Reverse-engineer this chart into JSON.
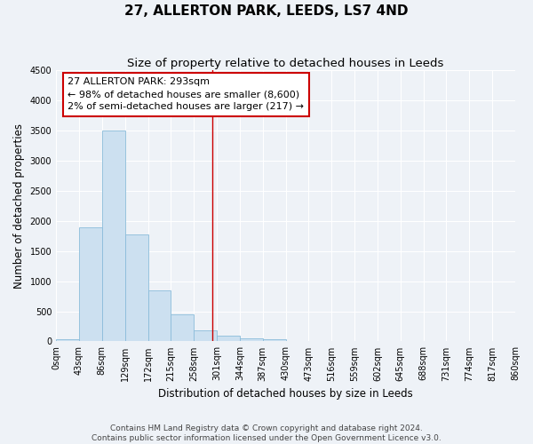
{
  "title": "27, ALLERTON PARK, LEEDS, LS7 4ND",
  "subtitle": "Size of property relative to detached houses in Leeds",
  "bar_values": [
    40,
    1900,
    3500,
    1780,
    850,
    450,
    185,
    90,
    55,
    30,
    0,
    0,
    0,
    0,
    0,
    0,
    0,
    0,
    0,
    0
  ],
  "bin_labels": [
    "0sqm",
    "43sqm",
    "86sqm",
    "129sqm",
    "172sqm",
    "215sqm",
    "258sqm",
    "301sqm",
    "344sqm",
    "387sqm",
    "430sqm",
    "473sqm",
    "516sqm",
    "559sqm",
    "602sqm",
    "645sqm",
    "688sqm",
    "731sqm",
    "774sqm",
    "817sqm",
    "860sqm"
  ],
  "bar_color": "#cce0f0",
  "bar_edge_color": "#8bbcda",
  "vline_color": "#cc0000",
  "annotation_line1": "27 ALLERTON PARK: 293sqm",
  "annotation_line2": "← 98% of detached houses are smaller (8,600)",
  "annotation_line3": "2% of semi-detached houses are larger (217) →",
  "annotation_box_color": "white",
  "annotation_box_edge": "#cc0000",
  "ylabel": "Number of detached properties",
  "xlabel": "Distribution of detached houses by size in Leeds",
  "ylim": [
    0,
    4500
  ],
  "yticks": [
    0,
    500,
    1000,
    1500,
    2000,
    2500,
    3000,
    3500,
    4000,
    4500
  ],
  "footer_line1": "Contains HM Land Registry data © Crown copyright and database right 2024.",
  "footer_line2": "Contains public sector information licensed under the Open Government Licence v3.0.",
  "background_color": "#eef2f7",
  "grid_color": "white",
  "title_fontsize": 11,
  "subtitle_fontsize": 9.5,
  "axis_label_fontsize": 8.5,
  "tick_fontsize": 7,
  "annotation_fontsize": 8,
  "footer_fontsize": 6.5
}
